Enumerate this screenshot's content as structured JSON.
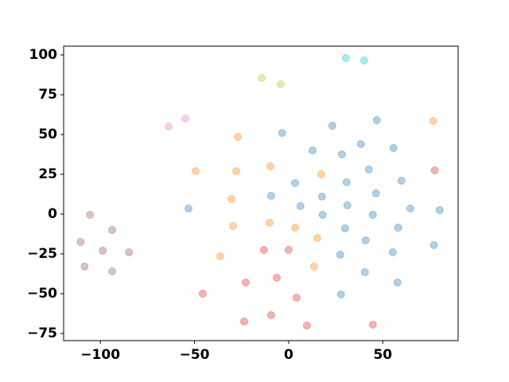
{
  "chart_data": {
    "type": "scatter",
    "xlim": [
      -119.5,
      90
    ],
    "ylim": [
      -79.5,
      105.5
    ],
    "xticks": [
      {
        "value": -100,
        "label": "−100"
      },
      {
        "value": -50,
        "label": "−50"
      },
      0,
      50
    ],
    "yticks": [
      {
        "value": -75,
        "label": "−75"
      },
      {
        "value": -50,
        "label": "−50"
      },
      {
        "value": -25,
        "label": "−25"
      },
      0,
      25,
      50,
      75,
      100
    ],
    "alpha": 0.35,
    "series": [
      {
        "color": "#1f77b4",
        "x": [
          -3.4,
          23.2,
          46.8,
          12.7,
          28.3,
          38.4,
          55.7,
          3.4,
          -9.3,
          17.7,
          30.8,
          42.6,
          46.4,
          59.9,
          -53.2,
          6.3,
          18.1,
          31.2,
          44.7,
          64.6,
          80.2,
          30,
          40.9,
          58.2,
          55.3,
          27.4,
          40.5,
          57.8,
          27.8,
          77.2
        ],
        "y": [
          51,
          55.5,
          59,
          40,
          37.5,
          44,
          41.5,
          19.5,
          11.5,
          11,
          20,
          28,
          13,
          21,
          3.5,
          5,
          -0.5,
          5.5,
          -0.5,
          3.5,
          2.5,
          -9,
          -16.5,
          -8.5,
          -24,
          -25.5,
          -36.5,
          -43,
          -50.5,
          -19.5
        ]
      },
      {
        "color": "#ff7f0e",
        "x": [
          -27,
          -49.4,
          -27.8,
          -9.7,
          17.3,
          -30.4,
          -10.1,
          3.4,
          -29.5,
          15.2,
          -36.3,
          13.5,
          76.8
        ],
        "y": [
          48.5,
          27,
          27,
          30,
          25,
          9.5,
          -5.5,
          -8.5,
          -7.5,
          -15,
          -26.5,
          -33,
          58.5
        ]
      },
      {
        "color": "#d62728",
        "x": [
          77.6,
          -13.1,
          0,
          -22.8,
          -6.3,
          -45.6,
          4.2,
          -23.6,
          -9.3,
          9.7,
          44.7
        ],
        "y": [
          27.5,
          -22.5,
          -22.5,
          -43,
          -40,
          -50,
          -52.5,
          -67.5,
          -63.5,
          -70,
          -69.5
        ]
      },
      {
        "color": "#8c564b",
        "x": [
          -105.5,
          -93.7,
          -110.5,
          -98.7,
          -84.8,
          -108.4,
          -93.7
        ],
        "y": [
          -0.5,
          -10,
          -17.5,
          -23,
          -24,
          -33,
          -36
        ]
      },
      {
        "color": "#e377c2",
        "x": [
          -63.7,
          -54.9
        ],
        "y": [
          55,
          60
        ]
      },
      {
        "color": "#bcbd22",
        "x": [
          -14.3,
          -4.2
        ],
        "y": [
          85.5,
          81.5
        ]
      },
      {
        "color": "#17becf",
        "x": [
          30.4,
          40.1
        ],
        "y": [
          98,
          96.5
        ]
      }
    ]
  }
}
